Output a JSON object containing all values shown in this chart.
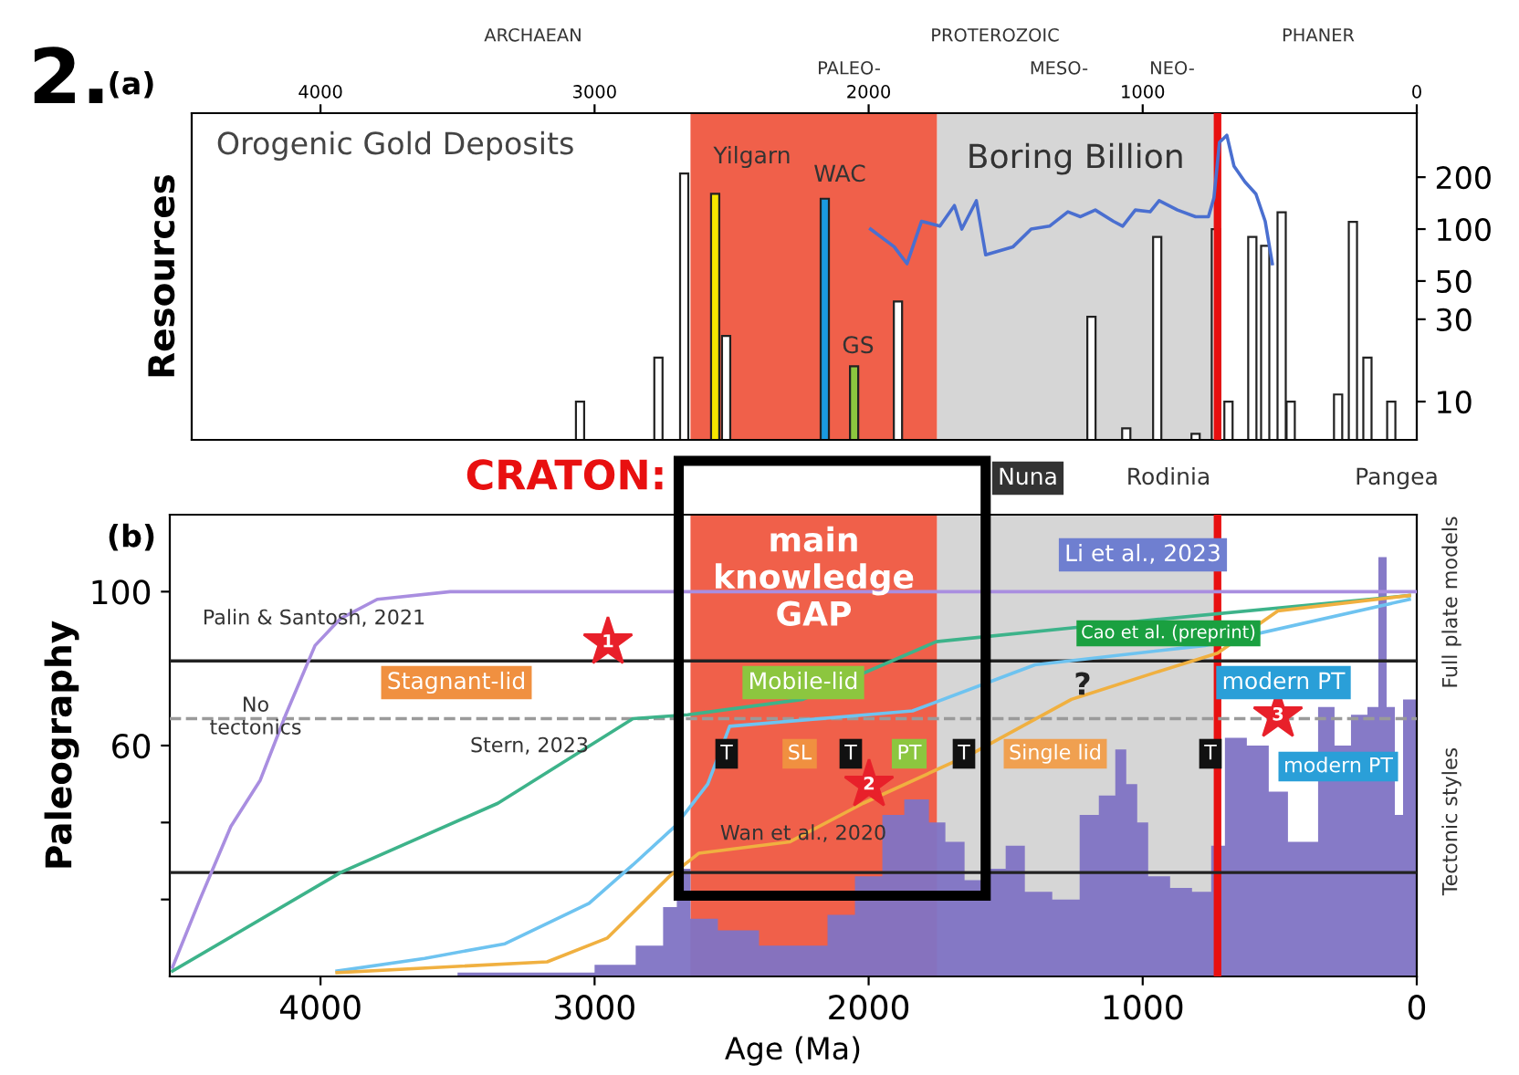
{
  "chart_data": [
    {
      "type": "bar",
      "title": "Orogenic Gold Deposits",
      "ylabel": "Resources",
      "log": "y",
      "xlim": [
        4470,
        0
      ],
      "ylim": [
        6,
        470
      ],
      "xticks": [
        4000,
        3000,
        2000,
        1000,
        0
      ],
      "yticks": [
        10,
        30,
        50,
        100,
        200
      ],
      "grid": false,
      "series": [
        {
          "x": [
            3053,
            2767,
            2673,
            2560,
            2520,
            2160,
            2053,
            1893,
            1187,
            1060,
            947,
            807,
            733,
            687,
            600,
            553,
            493,
            460,
            287,
            233,
            180,
            93
          ],
          "values": [
            10,
            18,
            210,
            160,
            24,
            150,
            16,
            38,
            31,
            7,
            90,
            6.5,
            100,
            10,
            90,
            80,
            125,
            10,
            11,
            110,
            18,
            10
          ],
          "colors": [
            "#ffffff",
            "#ffffff",
            "#ffffff",
            "#f5e600",
            "#ffffff",
            "#1a9ae0",
            "#8cc63f",
            "#ffffff",
            "#ffffff",
            "#ffffff",
            "#ffffff",
            "#ffffff",
            "#ffffff",
            "#ffffff",
            "#ffffff",
            "#ffffff",
            "#ffffff",
            "#ffffff",
            "#ffffff",
            "#ffffff",
            "#ffffff",
            "#ffffff"
          ]
        },
        {
          "type": "line",
          "color": "#4a6fd0",
          "x": [
            1993,
            1907,
            1860,
            1807,
            1740,
            1687,
            1660,
            1607,
            1573,
            1473,
            1407,
            1340,
            1273,
            1227,
            1173,
            1107,
            1073,
            1027,
            973,
            940,
            873,
            807,
            760,
            740,
            720,
            693,
            667,
            627,
            587,
            553,
            527
          ],
          "values": [
            100,
            79,
            63,
            111,
            104,
            137,
            100,
            146,
            71,
            79,
            100,
            104,
            126,
            118,
            129,
            111,
            104,
            129,
            126,
            146,
            129,
            118,
            118,
            152,
            318,
            350,
            232,
            188,
            160,
            111,
            63
          ]
        }
      ],
      "bands": [
        {
          "axis": "x",
          "from": 2650,
          "to": 1750,
          "label": null,
          "color": "#f0604a"
        },
        {
          "axis": "x",
          "from": 1750,
          "to": 740,
          "label": "Boring Billion",
          "color": "#d6d6d6"
        }
      ],
      "ref_lines": [
        {
          "axis": "x",
          "value": 727,
          "label": null,
          "color": "#e81010"
        }
      ],
      "annotations": [
        "2.",
        "(a)",
        "Yilgarn",
        "WAC",
        "GS",
        "ARCHAEAN",
        "PROTEROZOIC",
        "PHANER",
        "PALEO-",
        "MESO-",
        "NEO-"
      ]
    },
    {
      "type": "line",
      "xlabel": "Age (Ma)",
      "ylabel": "Paleography",
      "xlim": [
        4550,
        0
      ],
      "ylim": [
        0,
        120
      ],
      "xticks": [
        4000,
        3000,
        2000,
        1000,
        0
      ],
      "yticks": [
        100,
        60,
        {
          "value": 40,
          "label": null
        },
        {
          "value": 20,
          "label": null
        }
      ],
      "grid": false,
      "series": [
        {
          "type": "histogram",
          "color": "#8073c4",
          "bins": [
            3500,
            3000,
            2850,
            2750,
            2700,
            2650,
            2550,
            2400,
            2150,
            2050,
            1950,
            1870,
            1780,
            1720,
            1650,
            1580,
            1500,
            1430,
            1330,
            1230,
            1160,
            1100,
            1060,
            1020,
            980,
            900,
            820,
            750,
            700,
            620,
            540,
            470,
            360,
            300,
            240,
            180,
            140,
            110,
            80,
            50,
            0
          ],
          "values": [
            1,
            3,
            8,
            18,
            28,
            15,
            12,
            8,
            16,
            26,
            42,
            46,
            40,
            35,
            25,
            28,
            34,
            22,
            20,
            42,
            47,
            59,
            50,
            40,
            26,
            23,
            22,
            34,
            62,
            60,
            48,
            35,
            70,
            60,
            68,
            70,
            109,
            70,
            42,
            72
          ]
        },
        {
          "color": "#a98ee0",
          "x": [
            4540,
            4440,
            4327,
            4220,
            4127,
            4020,
            3927,
            3793,
            3527,
            0
          ],
          "values": [
            2.4,
            20,
            39,
            51,
            68,
            86,
            93,
            98,
            100,
            100
          ]
        },
        {
          "color": "#3db38a",
          "x": [
            4540,
            3927,
            3353,
            2860,
            2660,
            2240,
            1753,
            1060,
            27
          ],
          "values": [
            1.4,
            27,
            45,
            67,
            68,
            72,
            87,
            92,
            99
          ]
        },
        {
          "color": "#6ec3f0",
          "x": [
            3940,
            3620,
            3327,
            3020,
            2860,
            2707,
            2587,
            2507,
            1840,
            1393,
            773,
            27
          ],
          "values": [
            1.4,
            4.7,
            8.5,
            19,
            29,
            39,
            50,
            65,
            69,
            81,
            86,
            98
          ]
        },
        {
          "color": "#f0b040",
          "x": [
            3940,
            3173,
            2953,
            2727,
            2620,
            2287,
            2020,
            1620,
            1260,
            953,
            727,
            507,
            27
          ],
          "values": [
            1,
            3.8,
            10,
            26,
            32,
            35,
            45,
            58,
            72,
            79,
            84,
            95,
            99
          ]
        }
      ],
      "bands": [
        {
          "axis": "x",
          "from": 2650,
          "to": 1750,
          "label": "main\nknowledge\nGAP",
          "color": "#f0604a"
        },
        {
          "axis": "x",
          "from": 1750,
          "to": 740,
          "label": null,
          "color": "#d6d6d6"
        }
      ],
      "ref_lines": [
        {
          "axis": "x",
          "value": 727,
          "label": null,
          "color": "#e81010"
        },
        {
          "axis": "y",
          "value": 82,
          "label": null,
          "color": "#222222",
          "line_style": "solid"
        },
        {
          "axis": "y",
          "value": 67,
          "label": null,
          "color": "#9a9a9a",
          "line_style": "dashed"
        },
        {
          "axis": "y",
          "value": 27,
          "label": null,
          "color": "#222222",
          "line_style": "solid"
        }
      ],
      "annotations": [
        "(b)",
        "Full plate models",
        "Tectonic styles",
        "CRATON:",
        "Nuna",
        "Rodinia",
        "Pangea",
        "Li et al., 2023",
        "Cao et al. (preprint)",
        "Palin & Santosh, 2021",
        "Stagnant-lid",
        "Mobile-lid",
        "?",
        "modern PT",
        "No\ntectonics",
        "Stern, 2023",
        "T",
        "SL",
        "T",
        "PT",
        "T",
        "Single lid",
        "T",
        "modern PT",
        "Wan et al., 2020",
        "1",
        "2",
        "3"
      ]
    }
  ]
}
